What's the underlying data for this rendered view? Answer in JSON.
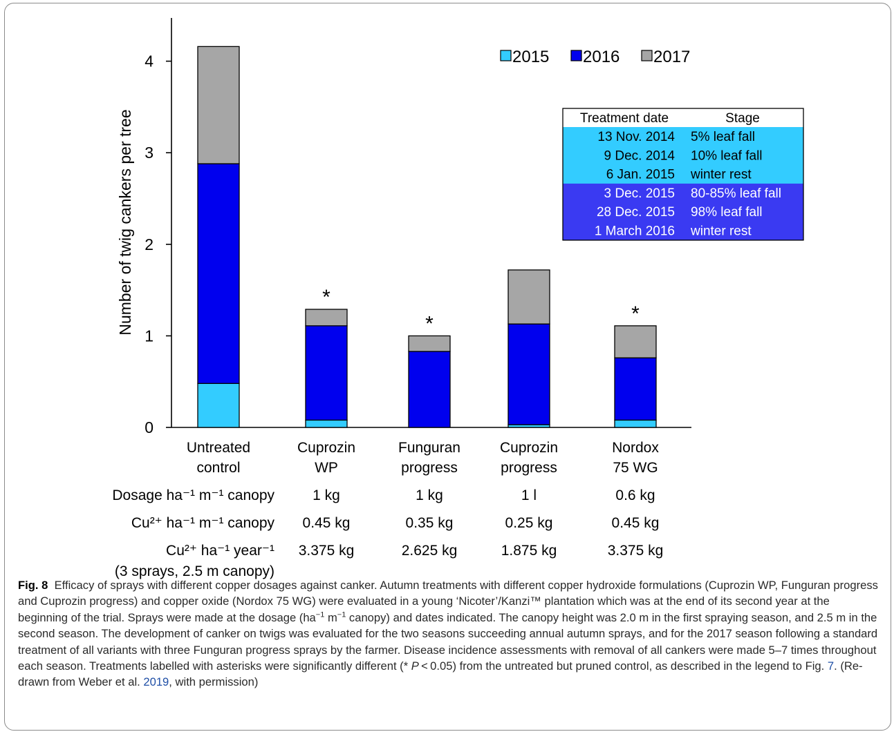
{
  "chart_data": {
    "type": "bar",
    "stacked": true,
    "categories": [
      "Untreated control",
      "Cuprozin WP",
      "Funguran progress",
      "Cuprozin progress",
      "Nordox 75 WG"
    ],
    "category_lines": [
      [
        "Untreated",
        "control"
      ],
      [
        "Cuprozin",
        "WP"
      ],
      [
        "Funguran",
        "progress"
      ],
      [
        "Cuprozin",
        "progress"
      ],
      [
        "Nordox",
        "75 WG"
      ]
    ],
    "series": [
      {
        "name": "2015",
        "color": "#33ccff",
        "values": [
          0.48,
          0.08,
          0.0,
          0.03,
          0.08
        ]
      },
      {
        "name": "2016",
        "color": "#0000ee",
        "values": [
          2.4,
          1.03,
          0.83,
          1.1,
          0.68
        ]
      },
      {
        "name": "2017",
        "color": "#a6a6a6",
        "values": [
          1.28,
          0.18,
          0.17,
          0.59,
          0.35
        ]
      }
    ],
    "significant": [
      false,
      true,
      true,
      false,
      true
    ],
    "significance_marker": "*",
    "ylabel": "Number of twig cankers per tree",
    "xlabel": "",
    "ylim": [
      0,
      4.5
    ],
    "yticks": [
      0,
      1,
      2,
      3,
      4
    ],
    "grid": false,
    "legend_position": "top-right",
    "inset_table": {
      "headers": [
        "Treatment date",
        "Stage"
      ],
      "rows": [
        {
          "date": "13 Nov. 2014",
          "stage": "5% leaf fall",
          "year": "2015"
        },
        {
          "date": "9 Dec. 2014",
          "stage": "10% leaf fall",
          "year": "2015"
        },
        {
          "date": "6 Jan. 2015",
          "stage": "winter rest",
          "year": "2015"
        },
        {
          "date": "3 Dec. 2015",
          "stage": "80-85% leaf fall",
          "year": "2016"
        },
        {
          "date": "28 Dec. 2015",
          "stage": "98% leaf fall",
          "year": "2016"
        },
        {
          "date": "1 March 2016",
          "stage": "winter rest",
          "year": "2016"
        }
      ]
    },
    "dosage_table": {
      "rows": [
        {
          "label": "Dosage ha⁻¹ m⁻¹ canopy",
          "values": [
            "1 kg",
            "1 kg",
            "1 l",
            "0.6 kg"
          ]
        },
        {
          "label": "Cu²⁺ ha⁻¹ m⁻¹ canopy",
          "values": [
            "0.45 kg",
            "0.35 kg",
            "0.25 kg",
            "0.45 kg"
          ]
        },
        {
          "label": "Cu²⁺ ha⁻¹ year⁻¹",
          "label2": "(3 sprays, 2.5 m canopy)",
          "values": [
            "3.375 kg",
            "2.625 kg",
            "1.875 kg",
            "3.375 kg"
          ]
        }
      ]
    }
  },
  "caption": {
    "label": "Fig. 8",
    "text_1": "Efficacy of sprays with different copper dosages against canker. Autumn treatments with different copper hydroxide formulations (Cuprozin WP, Funguran progress and Cuprozin progress) and copper oxide (Nordox 75 WG) were evaluated in a young ‘Nicoter’/Kanzi™ plantation which was at the end of its second year at the beginning of the trial. Sprays were made at the dosage (ha",
    "sup_1": "−1",
    "text_2": " m",
    "sup_2": "−1",
    "text_3": " canopy) and dates indicated. The canopy height was 2.0 m in the first spraying season, and 2.5 m in the second season. The development of canker on twigs was evaluated for the two seasons succeeding annual autumn sprays, and for the 2017 season following a standard treatment of all variants with three Funguran progress sprays by the farmer. Disease incidence assessments with removal of all cankers were made 5–7 times throughout each season. Treatments labelled with asterisks were significantly different (* ",
    "italic_p": "P",
    "text_4": " < 0.05) from the untreated but pruned control, as described in the legend to Fig. ",
    "link_fig": "7",
    "text_5": ". (Re-drawn from Weber et al. ",
    "link_year": "2019",
    "text_6": ", with permission)"
  }
}
